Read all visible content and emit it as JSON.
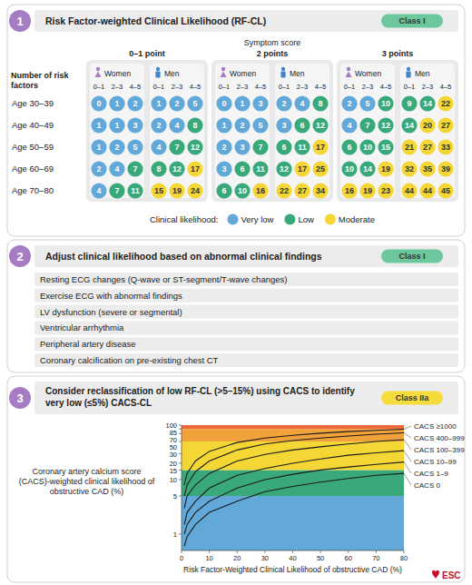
{
  "panel1": {
    "number": "1",
    "title": "Risk Factor-weighted Clinical Likelihood (RF-CL)",
    "class_label": "Class I",
    "class_color": "#6cc79e",
    "symptom_title": "Symptom score",
    "row_title": "Number of risk factors",
    "women": "Women",
    "men": "Men",
    "rf_columns": [
      "0–1",
      "2–3",
      "4–5"
    ],
    "ages": [
      "Age 30–39",
      "Age 40–49",
      "Age 50–59",
      "Age 60–69",
      "Age 70–80"
    ],
    "groups": [
      {
        "label": "0–1 point",
        "women": [
          [
            0,
            1,
            2
          ],
          [
            1,
            1,
            3
          ],
          [
            1,
            2,
            5
          ],
          [
            2,
            4,
            7
          ],
          [
            4,
            7,
            11
          ]
        ],
        "men": [
          [
            1,
            2,
            5
          ],
          [
            2,
            4,
            8
          ],
          [
            4,
            7,
            12
          ],
          [
            8,
            12,
            17
          ],
          [
            15,
            19,
            24
          ]
        ],
        "women_levels": [
          [
            "Very low",
            "Very low",
            "Very low"
          ],
          [
            "Very low",
            "Very low",
            "Very low"
          ],
          [
            "Very low",
            "Very low",
            "Very low"
          ],
          [
            "Very low",
            "Very low",
            "Low"
          ],
          [
            "Very low",
            "Low",
            "Low"
          ]
        ],
        "men_levels": [
          [
            "Very low",
            "Very low",
            "Very low"
          ],
          [
            "Very low",
            "Very low",
            "Low"
          ],
          [
            "Very low",
            "Low",
            "Low"
          ],
          [
            "Low",
            "Low",
            "Moderate"
          ],
          [
            "Moderate",
            "Moderate",
            "Moderate"
          ]
        ]
      },
      {
        "label": "2 points",
        "women": [
          [
            0,
            1,
            3
          ],
          [
            1,
            2,
            5
          ],
          [
            2,
            3,
            7
          ],
          [
            3,
            6,
            11
          ],
          [
            6,
            10,
            16
          ]
        ],
        "men": [
          [
            2,
            4,
            8
          ],
          [
            3,
            6,
            12
          ],
          [
            6,
            11,
            17
          ],
          [
            12,
            17,
            25
          ],
          [
            22,
            27,
            34
          ]
        ],
        "women_levels": [
          [
            "Very low",
            "Very low",
            "Very low"
          ],
          [
            "Very low",
            "Very low",
            "Very low"
          ],
          [
            "Very low",
            "Very low",
            "Low"
          ],
          [
            "Very low",
            "Low",
            "Low"
          ],
          [
            "Low",
            "Low",
            "Moderate"
          ]
        ],
        "men_levels": [
          [
            "Very low",
            "Very low",
            "Low"
          ],
          [
            "Very low",
            "Low",
            "Low"
          ],
          [
            "Low",
            "Low",
            "Moderate"
          ],
          [
            "Low",
            "Moderate",
            "Moderate"
          ],
          [
            "Moderate",
            "Moderate",
            "Moderate"
          ]
        ]
      },
      {
        "label": "3 points",
        "women": [
          [
            2,
            5,
            10
          ],
          [
            4,
            7,
            12
          ],
          [
            6,
            10,
            15
          ],
          [
            10,
            14,
            19
          ],
          [
            16,
            19,
            23
          ]
        ],
        "men": [
          [
            9,
            14,
            22
          ],
          [
            14,
            20,
            27
          ],
          [
            21,
            27,
            33
          ],
          [
            32,
            35,
            39
          ],
          [
            44,
            44,
            45
          ]
        ],
        "women_levels": [
          [
            "Very low",
            "Very low",
            "Low"
          ],
          [
            "Very low",
            "Low",
            "Low"
          ],
          [
            "Low",
            "Low",
            "Low"
          ],
          [
            "Low",
            "Low",
            "Moderate"
          ],
          [
            "Moderate",
            "Moderate",
            "Moderate"
          ]
        ],
        "men_levels": [
          [
            "Low",
            "Low",
            "Moderate"
          ],
          [
            "Low",
            "Moderate",
            "Moderate"
          ],
          [
            "Moderate",
            "Moderate",
            "Moderate"
          ],
          [
            "Moderate",
            "Moderate",
            "Moderate"
          ],
          [
            "Moderate",
            "Moderate",
            "Moderate"
          ]
        ]
      }
    ],
    "legend_title": "Clinical likelihood:",
    "levels": [
      {
        "label": "Very low",
        "color": "#62a8d8"
      },
      {
        "label": "Low",
        "color": "#3aa97a"
      },
      {
        "label": "Moderate",
        "color": "#f4d634"
      }
    ]
  },
  "panel2": {
    "number": "2",
    "title": "Adjust clinical likelihood based on abnormal clinical findings",
    "class_label": "Class I",
    "class_color": "#6cc79e",
    "items": [
      "Resting ECG changes (Q-wave or ST-segment/T-wave changes)",
      "Exercise ECG with abnormal findings",
      "LV dysfunction (severe or segmental)",
      "Ventricular arrhythmia",
      "Peripheral artery disease",
      "Coronary calcification on pre-existing chest CT"
    ]
  },
  "panel3": {
    "number": "3",
    "title": "Consider reclassification of low RF-CL (>5–15%) using CACS to identify very low (≤5%) CACS-CL",
    "class_label": "Class IIa",
    "class_color": "#f4dc3c"
  },
  "chart_data": {
    "type": "line",
    "y_label": "Coronary artery calcium score (CACS)-weighted clinical likelihood of obstructive CAD (%)",
    "x_label": "Risk Factor-Weighted Clinical Likelihood of obstructive CAD (%)",
    "x": [
      1,
      2,
      5,
      10,
      20,
      30,
      40,
      50,
      60,
      70,
      80
    ],
    "series": [
      {
        "name": "CACS 0",
        "color": "#1a1a1a",
        "values": [
          0.6,
          0.9,
          1.5,
          2.5,
          4,
          6,
          7.5,
          9,
          10.5,
          12,
          13
        ]
      },
      {
        "name": "CACS 1–9",
        "color": "#1a1a1a",
        "values": [
          1,
          1.5,
          2.5,
          4,
          7,
          10,
          12.5,
          15,
          17,
          19,
          21
        ]
      },
      {
        "name": "CACS 10–99",
        "color": "#1a1a1a",
        "values": [
          1.5,
          2.5,
          4,
          7,
          12,
          16,
          20,
          24,
          28,
          31,
          34
        ]
      },
      {
        "name": "CACS 100–399",
        "color": "#1a1a1a",
        "values": [
          3,
          5,
          8,
          13,
          22,
          29,
          35,
          40,
          45,
          50,
          54
        ]
      },
      {
        "name": "CACS 400–999",
        "color": "#1a1a1a",
        "values": [
          5,
          8,
          14,
          22,
          35,
          45,
          52,
          58,
          63,
          68,
          72
        ]
      },
      {
        "name": "CACS ≥1000",
        "color": "#1a1a1a",
        "values": [
          8,
          13,
          22,
          33,
          48,
          58,
          65,
          71,
          76,
          80,
          84
        ]
      }
    ],
    "bands": [
      {
        "from": 0.5,
        "to": 5,
        "color": "#62a8d8"
      },
      {
        "from": 5,
        "to": 15,
        "color": "#3aa97a"
      },
      {
        "from": 15,
        "to": 50,
        "color": "#f4d634"
      },
      {
        "from": 50,
        "to": 85,
        "color": "#f2a23a"
      },
      {
        "from": 85,
        "to": 100,
        "color": "#ec6a3a"
      }
    ],
    "xlim": [
      0,
      80
    ],
    "xticks": [
      0,
      10,
      20,
      30,
      40,
      50,
      60,
      70,
      80
    ],
    "ylim": [
      0.5,
      100
    ],
    "yticks": [
      1,
      5,
      10,
      15,
      20,
      30,
      50,
      70,
      85,
      100
    ],
    "log": "y",
    "grid": false
  },
  "logo": "ESC"
}
